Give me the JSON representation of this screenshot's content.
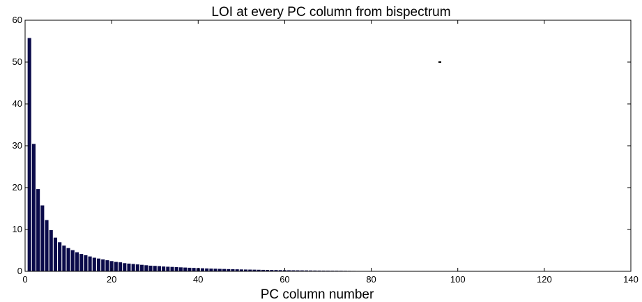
{
  "chart_data": {
    "type": "bar",
    "title": "LOI at every PC column from bispectrum",
    "xlabel": "PC column number",
    "ylabel": "",
    "xlim": [
      0,
      140
    ],
    "ylim": [
      0,
      60
    ],
    "xticks": [
      0,
      20,
      40,
      60,
      80,
      100,
      120,
      140
    ],
    "yticks": [
      0,
      10,
      20,
      30,
      40,
      50,
      60
    ],
    "grid": false,
    "bar_color": "#0b0b4a",
    "bar_edge_color": "#ffffff",
    "x": [
      1,
      2,
      3,
      4,
      5,
      6,
      7,
      8,
      9,
      10,
      11,
      12,
      13,
      14,
      15,
      16,
      17,
      18,
      19,
      20,
      21,
      22,
      23,
      24,
      25,
      26,
      27,
      28,
      29,
      30,
      31,
      32,
      33,
      34,
      35,
      36,
      37,
      38,
      39,
      40,
      41,
      42,
      43,
      44,
      45,
      46,
      47,
      48,
      49,
      50,
      51,
      52,
      53,
      54,
      55,
      56,
      57,
      58,
      59,
      60,
      61,
      62,
      63,
      64,
      65,
      66,
      67,
      68,
      69,
      70,
      71,
      72,
      73,
      74,
      75,
      76,
      77,
      78,
      79,
      80,
      81,
      82,
      83,
      84,
      85,
      86,
      87,
      88,
      89,
      90,
      91,
      92,
      93,
      94,
      95,
      96,
      97,
      98,
      99,
      100,
      101,
      102,
      103,
      104,
      105,
      106,
      107,
      108,
      109,
      110,
      111,
      112,
      113,
      114,
      115,
      116,
      117,
      118,
      119,
      120,
      121,
      122,
      123,
      124,
      125,
      126,
      127,
      128
    ],
    "values": [
      55.8,
      30.5,
      19.7,
      15.8,
      12.3,
      9.9,
      8.1,
      7.0,
      6.2,
      5.6,
      5.1,
      4.6,
      4.2,
      3.9,
      3.6,
      3.3,
      3.1,
      2.9,
      2.7,
      2.5,
      2.3,
      2.2,
      2.0,
      1.9,
      1.8,
      1.7,
      1.6,
      1.5,
      1.4,
      1.35,
      1.3,
      1.2,
      1.15,
      1.1,
      1.05,
      1.0,
      0.95,
      0.9,
      0.86,
      0.82,
      0.78,
      0.74,
      0.7,
      0.67,
      0.64,
      0.61,
      0.58,
      0.55,
      0.53,
      0.5,
      0.48,
      0.46,
      0.44,
      0.42,
      0.4,
      0.38,
      0.36,
      0.35,
      0.33,
      0.32,
      0.3,
      0.29,
      0.28,
      0.27,
      0.26,
      0.25,
      0.24,
      0.23,
      0.22,
      0.21,
      0.2,
      0.19,
      0.18,
      0.17,
      0.16,
      0.15,
      0.14,
      0.13,
      0.12,
      0.11,
      0.1,
      0.1,
      0.1,
      0.1,
      0.1,
      0.1,
      0.1,
      0.1,
      0.1,
      0.1,
      0.1,
      0.1,
      0.1,
      0.1,
      0.1,
      0.1,
      0.1,
      0.1,
      0.1,
      0.1,
      0.1,
      0.1,
      0.1,
      0.1,
      0.1,
      0.1,
      0.1,
      0.1,
      0.1,
      0.1,
      0.1,
      0.1,
      0.1,
      0.1,
      0.1,
      0.1,
      0.1,
      0.1,
      0.1,
      0.1,
      0.1,
      0.1,
      0.1,
      0.1,
      0.1,
      0.1,
      0.1,
      0.1
    ]
  }
}
